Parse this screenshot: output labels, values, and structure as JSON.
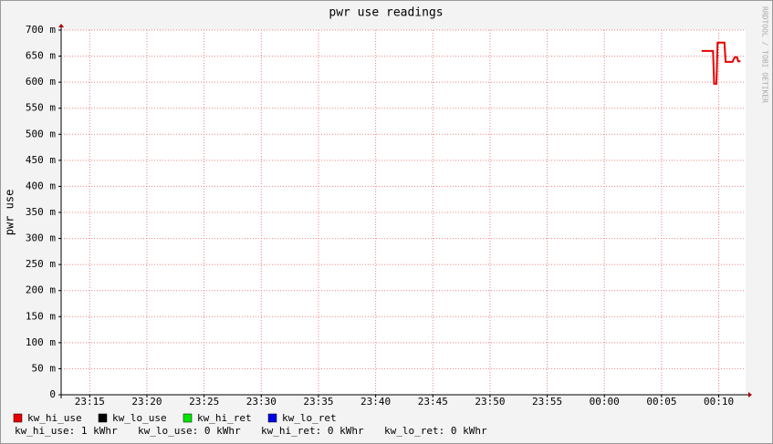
{
  "chart_data": {
    "type": "line",
    "title": "pwr use readings",
    "y_label": "pwr use",
    "watermark": "RRDTOOL / TOBI OETIKER",
    "x": [
      68.5,
      69.5,
      69.6,
      69.8,
      69.9,
      70.5,
      70.6,
      71.2,
      71.4,
      71.6,
      71.7,
      71.9
    ],
    "series": [
      {
        "name": "kw_hi_use",
        "color": "#e60000",
        "values": [
          0.66,
          0.66,
          0.597,
          0.597,
          0.676,
          0.676,
          0.639,
          0.639,
          0.648,
          0.648,
          0.64,
          0.64
        ]
      },
      {
        "name": "kw_lo_use",
        "color": "#000000",
        "values": [
          null,
          null,
          null,
          null,
          null,
          null,
          null,
          null,
          null,
          null,
          null,
          null
        ]
      },
      {
        "name": "kw_hi_ret",
        "color": "#00e600",
        "values": [
          null,
          null,
          null,
          null,
          null,
          null,
          null,
          null,
          null,
          null,
          null,
          null
        ]
      },
      {
        "name": "kw_lo_ret",
        "color": "#0000e6",
        "values": [
          null,
          null,
          null,
          null,
          null,
          null,
          null,
          null,
          null,
          null,
          null,
          null
        ]
      }
    ],
    "xlim": [
      12.5,
      72.35
    ],
    "xticks": [
      {
        "value": 15,
        "label": "23:15"
      },
      {
        "value": 20,
        "label": "23:20"
      },
      {
        "value": 25,
        "label": "23:25"
      },
      {
        "value": 30,
        "label": "23:30"
      },
      {
        "value": 35,
        "label": "23:35"
      },
      {
        "value": 40,
        "label": "23:40"
      },
      {
        "value": 45,
        "label": "23:45"
      },
      {
        "value": 50,
        "label": "23:50"
      },
      {
        "value": 55,
        "label": "23:55"
      },
      {
        "value": 60,
        "label": "00:00"
      },
      {
        "value": 65,
        "label": "00:05"
      },
      {
        "value": 70,
        "label": "00:10"
      }
    ],
    "ylim": [
      0,
      0.7
    ],
    "yticks": [
      0,
      {
        "value": 0.05,
        "label": "50 m"
      },
      {
        "value": 0.1,
        "label": "100 m"
      },
      {
        "value": 0.15,
        "label": "150 m"
      },
      {
        "value": 0.2,
        "label": "200 m"
      },
      {
        "value": 0.25,
        "label": "250 m"
      },
      {
        "value": 0.3,
        "label": "300 m"
      },
      {
        "value": 0.35,
        "label": "350 m"
      },
      {
        "value": 0.4,
        "label": "400 m"
      },
      {
        "value": 0.45,
        "label": "450 m"
      },
      {
        "value": 0.5,
        "label": "500 m"
      },
      {
        "value": 0.55,
        "label": "550 m"
      },
      {
        "value": 0.6,
        "label": "600 m"
      },
      {
        "value": 0.65,
        "label": "650 m"
      },
      {
        "value": 0.7,
        "label": "700 m"
      }
    ],
    "grid": true,
    "summary": [
      "kw_hi_use: 1 kWhr",
      "kw_lo_use: 0 kWhr",
      "kw_hi_ret: 0 kWhr",
      "kw_lo_ret: 0 kWhr"
    ]
  }
}
